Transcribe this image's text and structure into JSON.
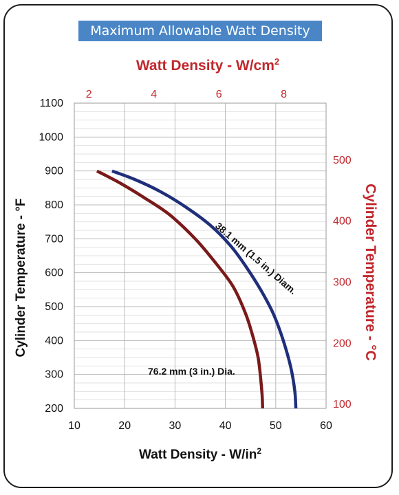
{
  "chart_data": {
    "type": "line",
    "title": "Maximum Allowable Watt Density",
    "xlabel": "Watt Density - W/in",
    "xlabel_sup": "2",
    "ylabel": "Cylinder Temperature - °F",
    "x2label": "Watt Density - W/cm",
    "x2label_sup": "2",
    "y2label": "Cylinder Temperature - °C",
    "xlim": [
      10,
      60
    ],
    "ylim": [
      200,
      1100
    ],
    "xticks": [
      10,
      20,
      30,
      40,
      50,
      60
    ],
    "yticks": [
      200,
      300,
      400,
      500,
      600,
      700,
      800,
      900,
      1000,
      1100
    ],
    "x2ticks": [
      2,
      4,
      6,
      8
    ],
    "y2ticks": [
      100,
      200,
      300,
      400,
      500
    ],
    "grid": true,
    "series": [
      {
        "name": "38.1 mm (1.5 in.) Diam.",
        "color": "#1f2f7a",
        "x": [
          17.5,
          22,
          27,
          32,
          37,
          41,
          44,
          47,
          49.5,
          51.5,
          53,
          53.8,
          54
        ],
        "y": [
          900,
          875,
          840,
          795,
          740,
          680,
          620,
          550,
          480,
          400,
          320,
          250,
          200
        ]
      },
      {
        "name": "76.2 mm (3 in.) Dia.",
        "color": "#7a1a1a",
        "x": [
          14.5,
          19,
          24,
          29,
          34,
          38,
          41.5,
          44,
          45.5,
          46.5,
          47,
          47.3,
          47.4
        ],
        "y": [
          900,
          865,
          820,
          770,
          700,
          630,
          560,
          480,
          410,
          350,
          290,
          240,
          200
        ]
      }
    ]
  }
}
